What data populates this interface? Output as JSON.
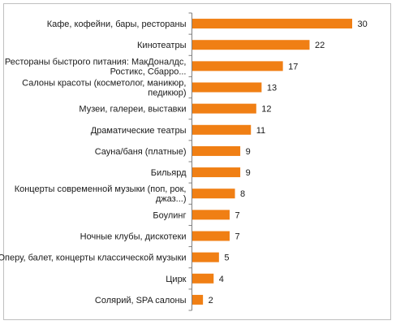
{
  "chart_data": {
    "type": "bar",
    "orientation": "horizontal",
    "title": "",
    "xlabel": "",
    "ylabel": "",
    "bar_color": "#F07F14",
    "axis_color": "#7f7f7f",
    "grid": false,
    "legend": "none",
    "xlim": [
      0,
      30
    ],
    "categories": [
      [
        "Кафе, кофейни, бары, рестораны"
      ],
      [
        "Кинотеатры"
      ],
      [
        "Рестораны быстрого питания: МакДоналдс,",
        "Ростикс, Сбарро..."
      ],
      [
        "Салоны красоты (косметолог, маникюр,",
        "педикюр)"
      ],
      [
        "Музеи, галереи, выставки"
      ],
      [
        "Драматические театры"
      ],
      [
        "Сауна/баня (платные)"
      ],
      [
        "Бильярд"
      ],
      [
        "Концерты современной музыки (поп, рок,",
        "джаз...)"
      ],
      [
        "Боулинг"
      ],
      [
        "Ночные клубы, дискотеки"
      ],
      [
        "Оперу, балет, концерты классической музыки"
      ],
      [
        "Цирк"
      ],
      [
        "Солярий, SPA салоны"
      ]
    ],
    "values": [
      30,
      22,
      17,
      13,
      12,
      11,
      9,
      9,
      8,
      7,
      7,
      5,
      4,
      2
    ]
  }
}
